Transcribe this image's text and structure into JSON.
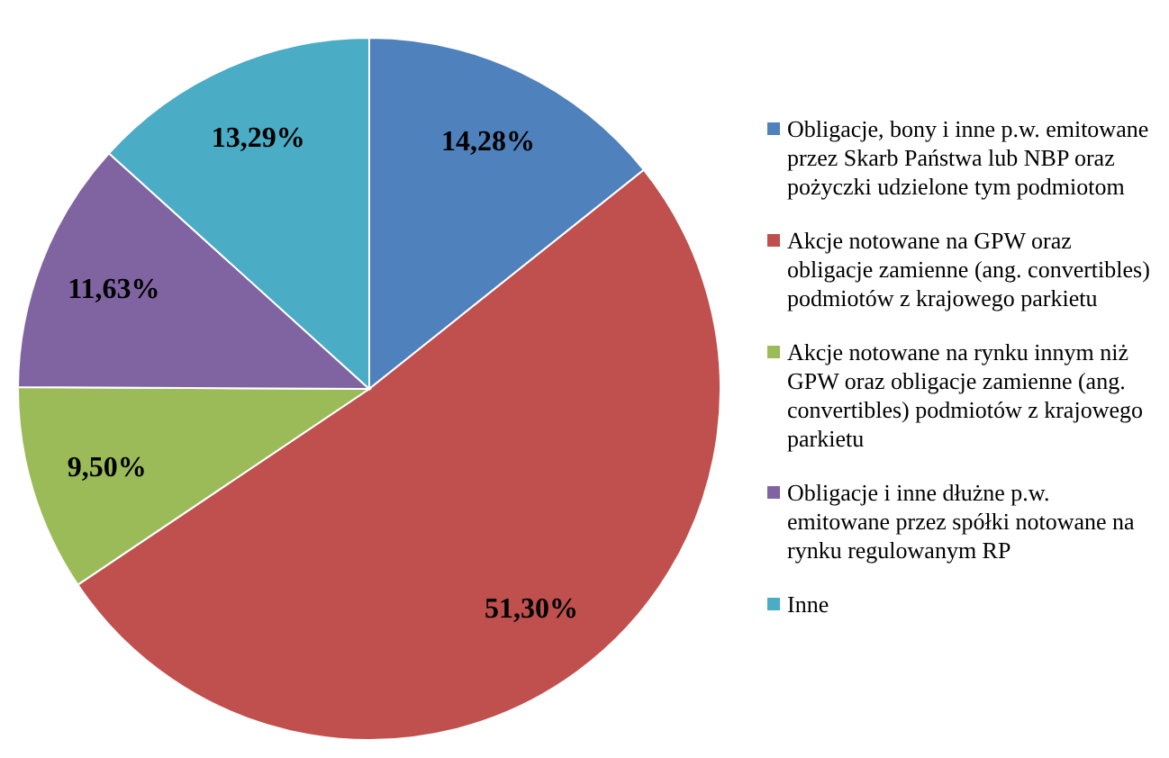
{
  "chart_data": {
    "type": "pie",
    "categories": [
      "Obligacje, bony i inne p.w. emitowane przez Skarb Państwa lub NBP oraz pożyczki udzielone tym podmiotom",
      "Akcje notowane na GPW oraz obligacje zamienne (ang. convertibles) podmiotów z krajowego parkietu",
      "Akcje notowane na rynku innym niż GPW oraz obligacje zamienne (ang. convertibles) podmiotów z krajowego parkietu",
      "Obligacje i inne dłużne p.w. emitowane przez spółki notowane na rynku regulowanym RP",
      "Inne"
    ],
    "values": [
      14.28,
      51.3,
      9.5,
      11.63,
      13.29
    ],
    "value_labels": [
      "14,28%",
      "51,30%",
      "9,50%",
      "11,63%",
      "13,29%"
    ],
    "colors": [
      "#4f81bd",
      "#c0504d",
      "#9bbb59",
      "#8064a2",
      "#4bacc6"
    ],
    "legend": "right"
  }
}
